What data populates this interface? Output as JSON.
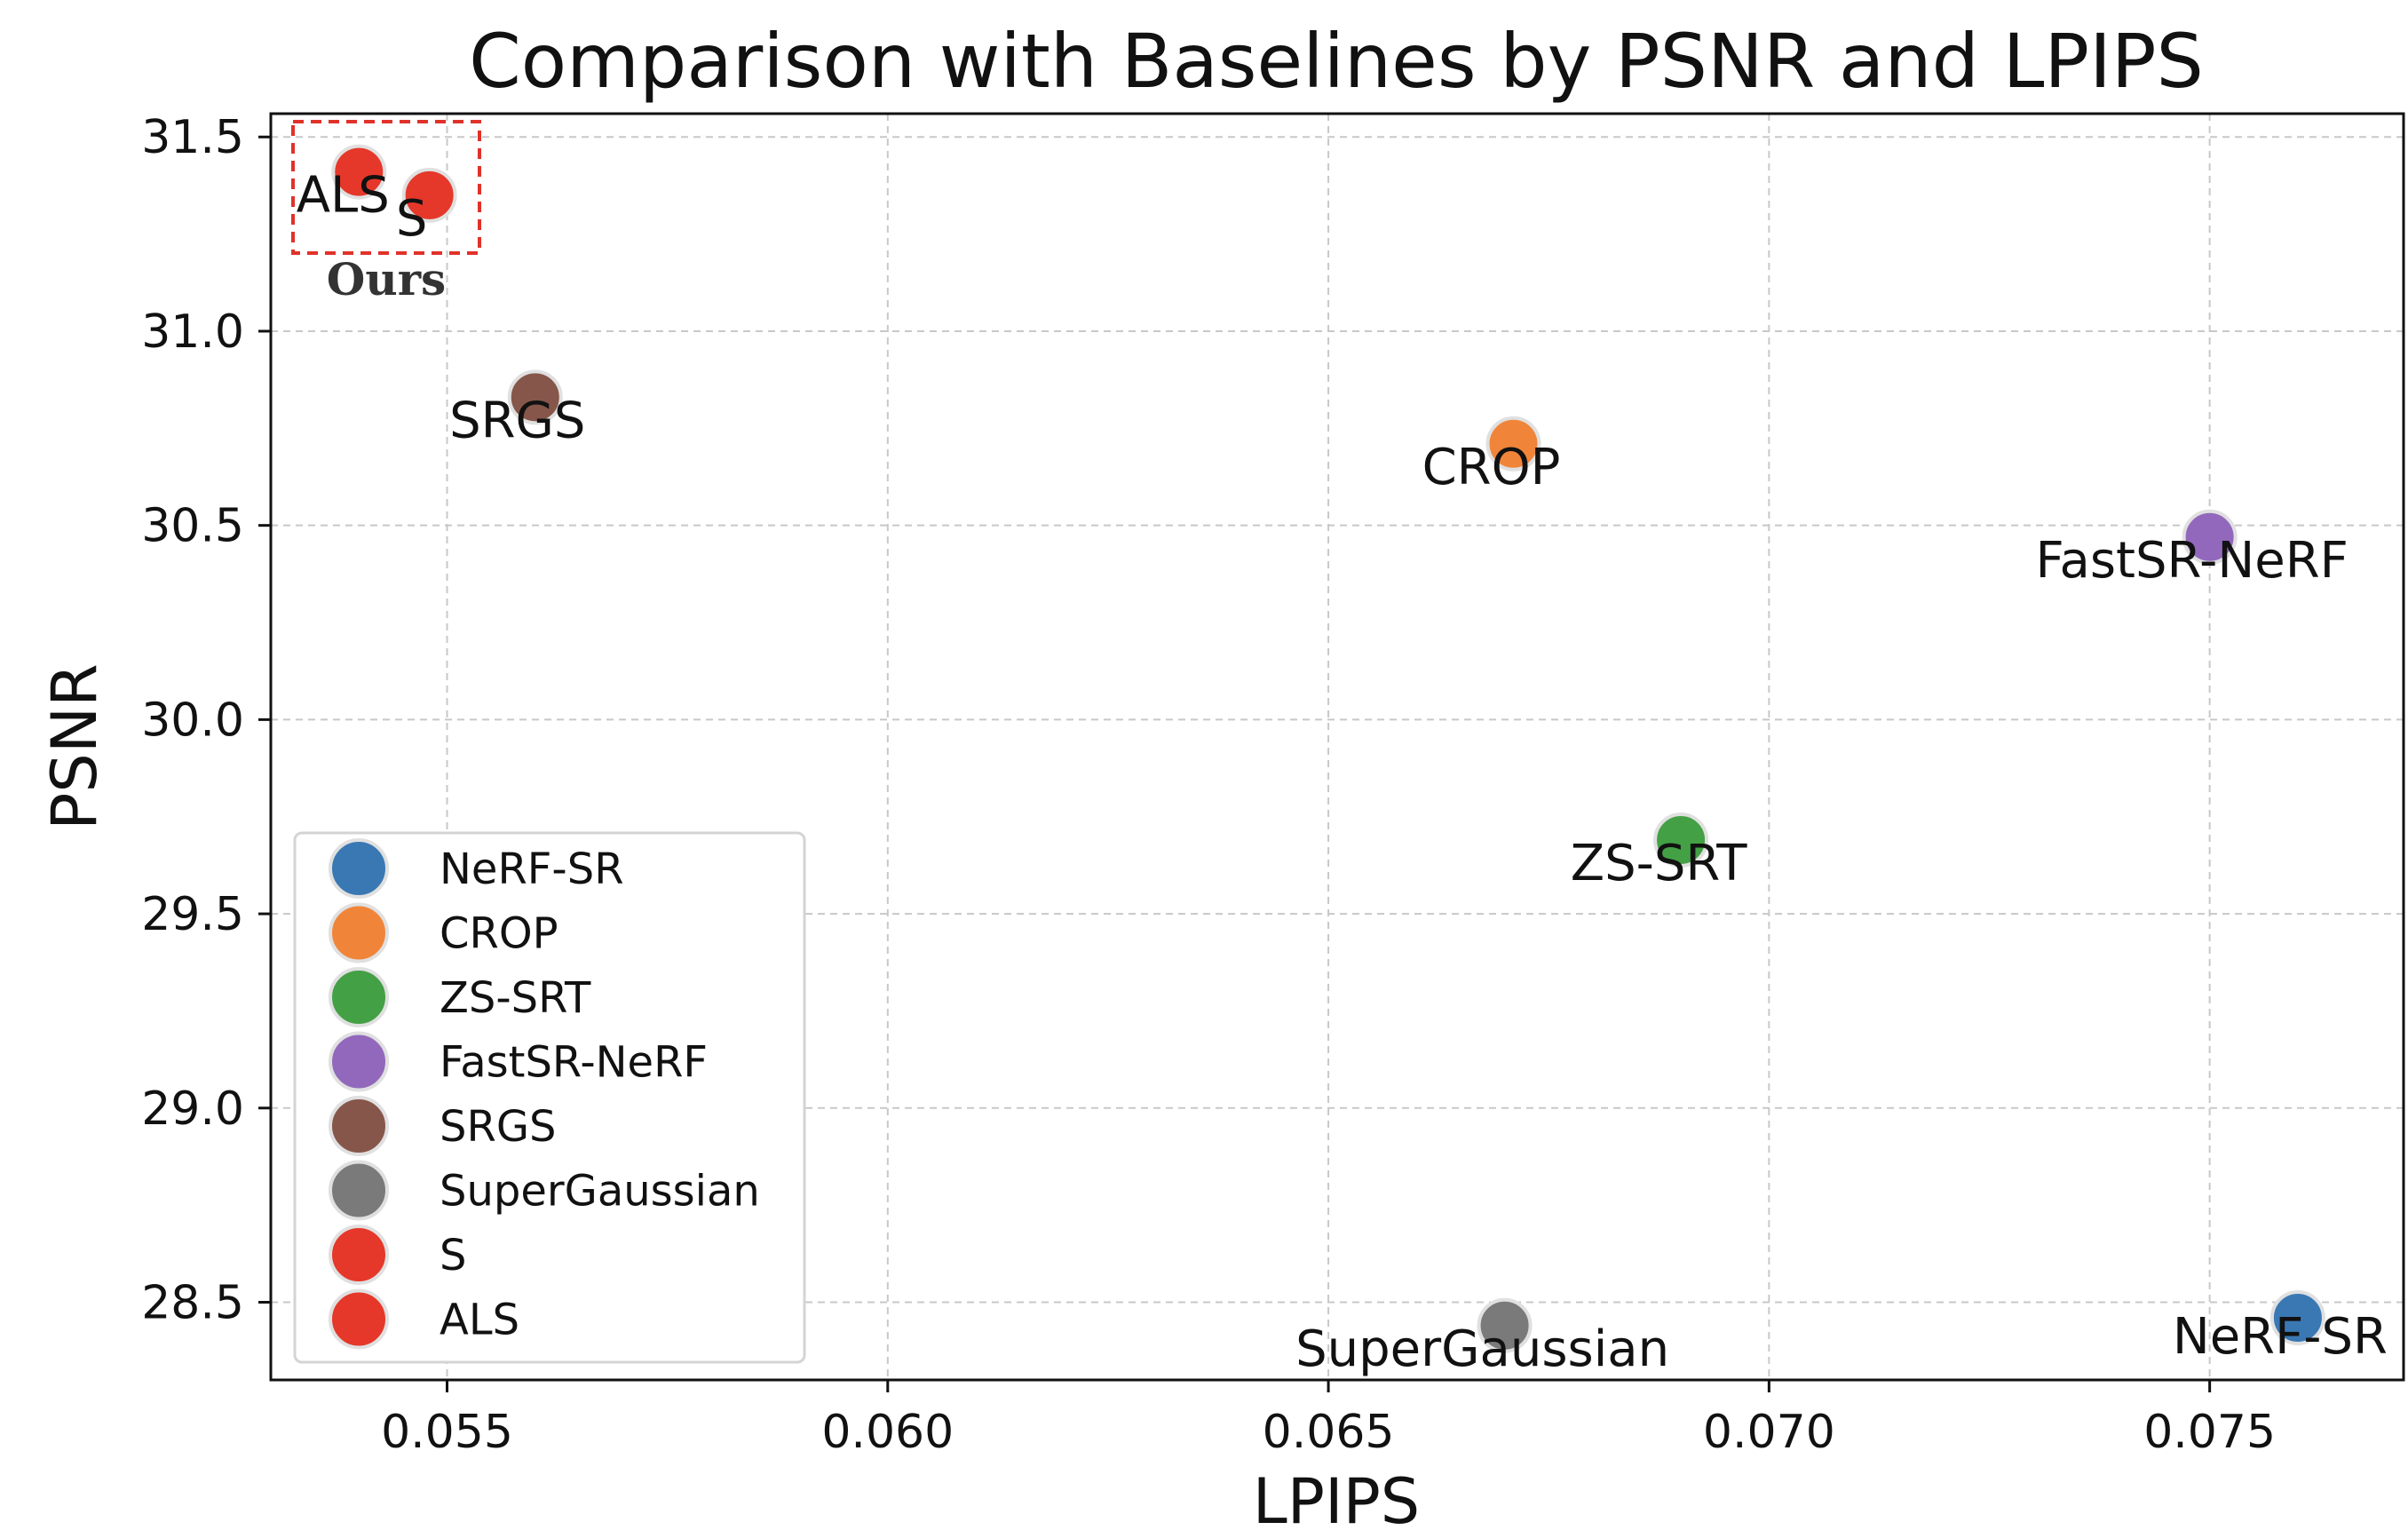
{
  "chart_data": {
    "type": "scatter",
    "title": "Comparison with Baselines by PSNR and LPIPS",
    "xlabel": "LPIPS",
    "ylabel": "PSNR",
    "xlim": [
      0.053,
      0.0772
    ],
    "ylim": [
      28.3,
      31.56
    ],
    "xticks": [
      0.055,
      0.06,
      0.065,
      0.07,
      0.075
    ],
    "xtick_labels": [
      "0.055",
      "0.060",
      "0.065",
      "0.070",
      "0.075"
    ],
    "yticks": [
      28.5,
      29.0,
      29.5,
      30.0,
      30.5,
      31.0,
      31.5
    ],
    "ytick_labels": [
      "28.5",
      "29.0",
      "29.5",
      "30.0",
      "30.5",
      "31.0",
      "31.5"
    ],
    "grid": true,
    "legend_position": "lower-left",
    "series": [
      {
        "name": "NeRF-SR",
        "x": 0.076,
        "y": 28.46,
        "color": "#3a78b4"
      },
      {
        "name": "CROP",
        "x": 0.0671,
        "y": 30.71,
        "color": "#f0853a"
      },
      {
        "name": "ZS-SRT",
        "x": 0.069,
        "y": 29.69,
        "color": "#44a044"
      },
      {
        "name": "FastSR-NeRF",
        "x": 0.075,
        "y": 30.47,
        "color": "#9268bc"
      },
      {
        "name": "SRGS",
        "x": 0.056,
        "y": 30.83,
        "color": "#86564a"
      },
      {
        "name": "SuperGaussian",
        "x": 0.067,
        "y": 28.44,
        "color": "#7a7a7a"
      },
      {
        "name": "S",
        "x": 0.0548,
        "y": 31.35,
        "color": "#e5382a"
      },
      {
        "name": "ALS",
        "x": 0.054,
        "y": 31.41,
        "color": "#e5382a"
      }
    ],
    "annotations": [
      {
        "text": "Ours",
        "target": [
          "S",
          "ALS"
        ],
        "style": "red dashed box"
      }
    ]
  }
}
